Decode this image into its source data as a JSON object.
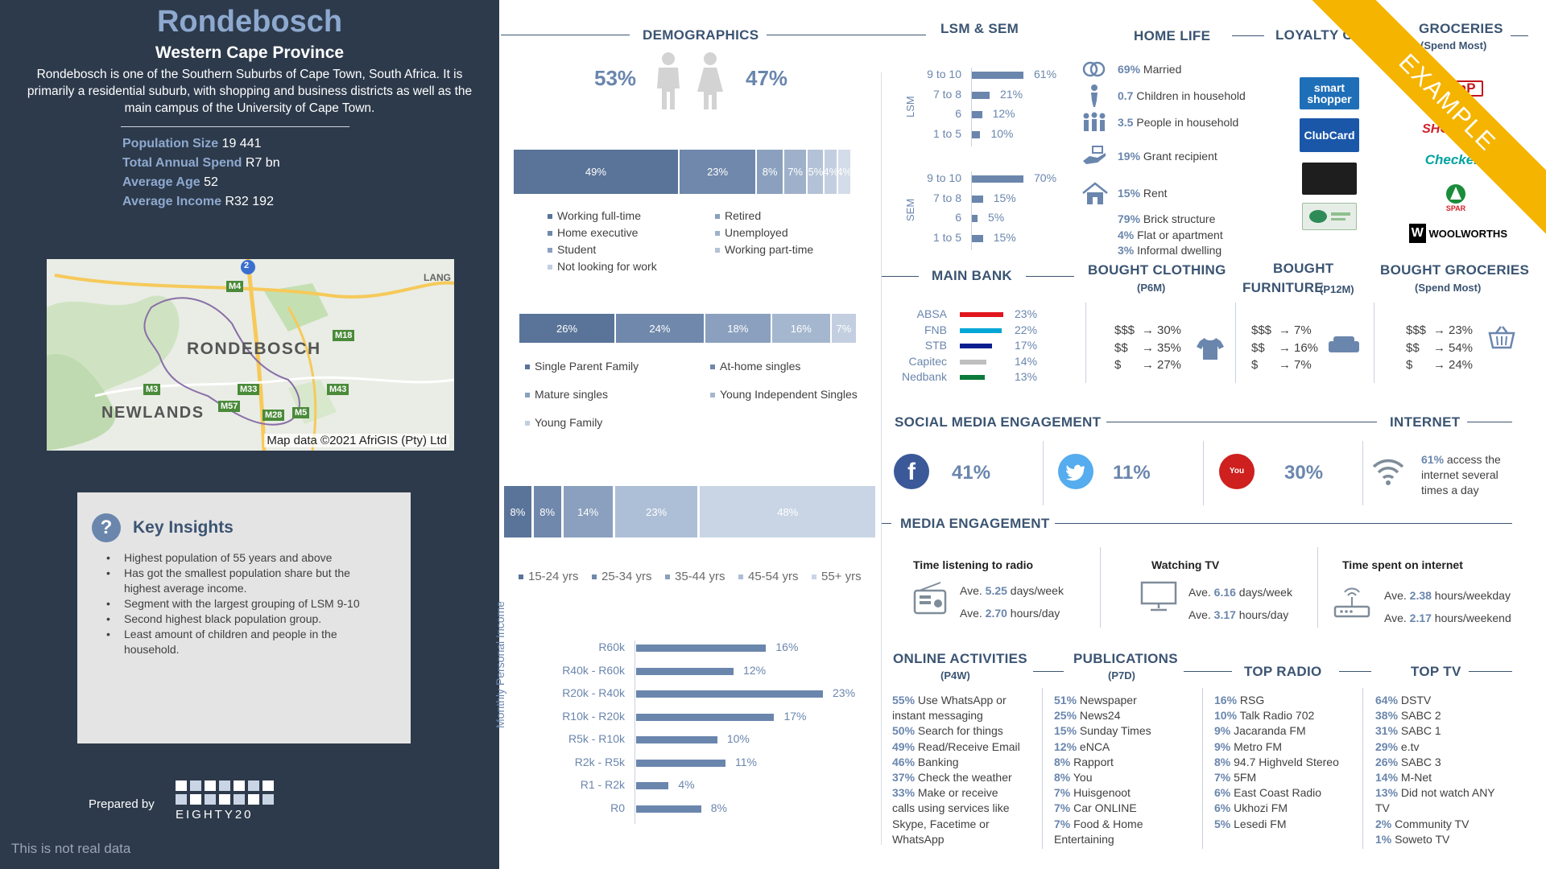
{
  "sidebar": {
    "title": "Rondebosch",
    "province": "Western Cape Province",
    "description": "Rondebosch is one of the Southern Suburbs of Cape Town, South Africa. It is primarily a residential suburb, with shopping and business districts as well as the main campus of the University of Cape Town.",
    "stats": [
      {
        "label": "Population Size",
        "value": "19 441"
      },
      {
        "label": "Total Annual Spend",
        "value": "R7 bn"
      },
      {
        "label": "Average Age",
        "value": "52"
      },
      {
        "label": "Average Income",
        "value": "R32 192"
      }
    ],
    "map": {
      "labels": [
        "RONDEBOSCH",
        "NEWLANDS",
        "LANG"
      ],
      "routes": [
        "2",
        "M4",
        "M18",
        "M3",
        "M33",
        "M43",
        "M57",
        "M28",
        "M5"
      ],
      "credit": "Map data ©2021 AfriGIS (Pty) Ltd"
    },
    "insights": {
      "title": "Key Insights",
      "items": [
        "Highest population of 55 years and above",
        "Has got the smallest population share but the highest average income.",
        "Segment with the largest grouping of LSM 9-10",
        "Second highest black population group.",
        "Least amount of children and people in the household."
      ]
    },
    "prepared_by": "Prepared by",
    "brand": "EIGHTY20",
    "disclaimer": "This is not real data"
  },
  "demographics": {
    "title": "DEMOGRAPHICS",
    "male_pct": "53%",
    "female_pct": "47%",
    "employment": {
      "segments": [
        {
          "label": "49%",
          "value": 49,
          "color": "#5a7499"
        },
        {
          "label": "23%",
          "value": 23,
          "color": "#6f88ab"
        },
        {
          "label": "8%",
          "value": 8,
          "color": "#8aa0be"
        },
        {
          "label": "7%",
          "value": 7,
          "color": "#9fb1ca"
        },
        {
          "label": "5%",
          "value": 5,
          "color": "#b3c2d6"
        },
        {
          "label": "4%",
          "value": 4,
          "color": "#c3cfe0"
        },
        {
          "label": "4%",
          "value": 4,
          "color": "#d3dce8"
        }
      ],
      "legend": [
        "Working full-time",
        "Retired",
        "Home executive",
        "Unemployed",
        "Student",
        "Working part-time",
        "Not looking for work"
      ]
    },
    "household": {
      "segments": [
        {
          "label": "26%",
          "value": 26,
          "color": "#5a7499"
        },
        {
          "label": "24%",
          "value": 24,
          "color": "#6f88ab"
        },
        {
          "label": "18%",
          "value": 18,
          "color": "#8aa0be"
        },
        {
          "label": "16%",
          "value": 16,
          "color": "#a5b7cf"
        },
        {
          "label": "7%",
          "value": 7,
          "color": "#c3cfe0"
        }
      ],
      "legend": [
        "Single Parent Family",
        "At-home singles",
        "Mature singles",
        "Young Independent Singles",
        "Young Family"
      ]
    },
    "age": {
      "segments": [
        {
          "label": "8%",
          "value": 8,
          "color": "#5a7499"
        },
        {
          "label": "8%",
          "value": 8,
          "color": "#6f88ab"
        },
        {
          "label": "14%",
          "value": 14,
          "color": "#8aa0be"
        },
        {
          "label": "23%",
          "value": 23,
          "color": "#adbfd6"
        },
        {
          "label": "48%",
          "value": 48,
          "color": "#c9d5e5"
        }
      ],
      "legend": [
        "15-24 yrs",
        "25-34 yrs",
        "35-44 yrs",
        "45-54 yrs",
        "55+ yrs"
      ]
    },
    "income": {
      "axis_label": "Monthly Personal Income",
      "rows": [
        {
          "label": "R60k",
          "value": 16,
          "text": "16%"
        },
        {
          "label": "R40k - R60k",
          "value": 12,
          "text": "12%"
        },
        {
          "label": "R20k - R40k",
          "value": 23,
          "text": "23%"
        },
        {
          "label": "R10k - R20k",
          "value": 17,
          "text": "17%"
        },
        {
          "label": "R5k - R10k",
          "value": 10,
          "text": "10%"
        },
        {
          "label": "R2k - R5k",
          "value": 11,
          "text": "11%"
        },
        {
          "label": "R1 - R2k",
          "value": 4,
          "text": "4%"
        },
        {
          "label": "R0",
          "value": 8,
          "text": "8%"
        }
      ]
    }
  },
  "lsm_sem": {
    "title": "LSM & SEM",
    "lsm_label": "LSM",
    "sem_label": "SEM",
    "lsm": [
      {
        "label": "9 to 10",
        "value": 61,
        "text": "61%"
      },
      {
        "label": "7 to 8",
        "value": 21,
        "text": "21%"
      },
      {
        "label": "6",
        "value": 12,
        "text": "12%"
      },
      {
        "label": "1 to 5",
        "value": 10,
        "text": "10%"
      }
    ],
    "sem": [
      {
        "label": "9 to 10",
        "value": 70,
        "text": "70%"
      },
      {
        "label": "7 to 8",
        "value": 15,
        "text": "15%"
      },
      {
        "label": "6",
        "value": 5,
        "text": "5%"
      },
      {
        "label": "1 to 5",
        "value": 15,
        "text": "15%"
      }
    ]
  },
  "home_life": {
    "title": "HOME LIFE",
    "items": [
      {
        "num": "69%",
        "text": "Married"
      },
      {
        "num": "0.7",
        "text": "Children in household"
      },
      {
        "num": "3.5",
        "text": "People in household"
      },
      {
        "num": "19%",
        "text": "Grant recipient"
      },
      {
        "num": "15%",
        "text": "Rent"
      }
    ],
    "dwelling": [
      {
        "num": "79%",
        "text": "Brick structure"
      },
      {
        "num": "4%",
        "text": "Flat or apartment"
      },
      {
        "num": "3%",
        "text": "Informal dwelling"
      }
    ]
  },
  "loyalty": {
    "title": "LOYALTY CARDS",
    "cards": [
      "smart shopper",
      "ClubCard",
      "",
      ""
    ]
  },
  "groceries_top": {
    "title": "GROCERIES",
    "subtitle": "(Spend Most)",
    "stores": [
      "PnP",
      "SHOPRITE",
      "Checkers",
      "SPAR",
      "WOOLWORTHS"
    ]
  },
  "watermark": "EXAMPLE",
  "main_bank": {
    "title": "MAIN BANK",
    "banks": [
      {
        "name": "ABSA",
        "value": 23,
        "text": "23%",
        "color": "#e0161e"
      },
      {
        "name": "FNB",
        "value": 22,
        "text": "22%",
        "color": "#00a6d6"
      },
      {
        "name": "STB",
        "value": 17,
        "text": "17%",
        "color": "#0a1f8f"
      },
      {
        "name": "Capitec",
        "value": 14,
        "text": "14%",
        "color": "#bfbfbf"
      },
      {
        "name": "Nedbank",
        "value": 13,
        "text": "13%",
        "color": "#0b7a3b"
      }
    ]
  },
  "bought_clothing": {
    "title": "BOUGHT CLOTHING",
    "subtitle": "(P6M)",
    "rows": [
      {
        "k": "$$$",
        "v": "30%"
      },
      {
        "k": "$$",
        "v": "35%"
      },
      {
        "k": "$",
        "v": "27%"
      }
    ]
  },
  "bought_furniture": {
    "title": "BOUGHT",
    "title2": "FURNITURE",
    "subtitle": "(P12M)",
    "rows": [
      {
        "k": "$$$",
        "v": "7%"
      },
      {
        "k": "$$",
        "v": "16%"
      },
      {
        "k": "$",
        "v": "7%"
      }
    ]
  },
  "bought_groceries": {
    "title": "BOUGHT GROCERIES",
    "subtitle": "(Spend Most)",
    "rows": [
      {
        "k": "$$$",
        "v": "23%"
      },
      {
        "k": "$$",
        "v": "54%"
      },
      {
        "k": "$",
        "v": "24%"
      }
    ]
  },
  "social": {
    "title": "SOCIAL MEDIA ENGAGEMENT",
    "facebook": "41%",
    "twitter": "11%",
    "youtube": "30%"
  },
  "internet": {
    "title": "INTERNET",
    "pct": "61%",
    "text": "access the internet several times a day"
  },
  "media": {
    "title": "MEDIA ENGAGEMENT",
    "radio": {
      "title": "Time listening to radio",
      "a_pre": "Ave.",
      "a_num": "5.25",
      "a_unit": "days/week",
      "b_pre": "Ave.",
      "b_num": "2.70",
      "b_unit": "hours/day"
    },
    "tv": {
      "title": "Watching TV",
      "a_pre": "Ave.",
      "a_num": "6.16",
      "a_unit": "days/week",
      "b_pre": "Ave.",
      "b_num": "3.17",
      "b_unit": "hours/day"
    },
    "web": {
      "title": "Time spent on internet",
      "a_pre": "Ave.",
      "a_num": "2.38",
      "a_unit": "hours/weekday",
      "b_pre": "Ave.",
      "b_num": "2.17",
      "b_unit": "hours/weekend"
    }
  },
  "online": {
    "title": "ONLINE ACTIVITIES",
    "subtitle": "(P4W)",
    "items": [
      {
        "num": "55%",
        "text": "Use WhatsApp or",
        "cont": "instant messaging"
      },
      {
        "num": "50%",
        "text": "Search for things"
      },
      {
        "num": "49%",
        "text": "Read/Receive Email"
      },
      {
        "num": "46%",
        "text": "Banking"
      },
      {
        "num": "37%",
        "text": "Check the weather"
      },
      {
        "num": "33%",
        "text": "Make or receive",
        "cont": "calls using services like",
        "cont2": "Skype, Facetime or",
        "cont3": "WhatsApp"
      }
    ]
  },
  "publications": {
    "title": "PUBLICATIONS",
    "subtitle": "(P7D)",
    "items": [
      {
        "num": "51%",
        "text": "Newspaper"
      },
      {
        "num": "25%",
        "text": "News24"
      },
      {
        "num": "15%",
        "text": "Sunday Times"
      },
      {
        "num": "12%",
        "text": "eNCA"
      },
      {
        "num": "8%",
        "text": "Rapport"
      },
      {
        "num": "8%",
        "text": "You"
      },
      {
        "num": "7%",
        "text": "Huisgenoot"
      },
      {
        "num": "7%",
        "text": "Car ONLINE"
      },
      {
        "num": "7%",
        "text": "Food & Home",
        "cont": "Entertaining"
      }
    ]
  },
  "top_radio": {
    "title": "TOP RADIO",
    "items": [
      {
        "num": "16%",
        "text": "RSG"
      },
      {
        "num": "10%",
        "text": "Talk Radio 702"
      },
      {
        "num": "9%",
        "text": "Jacaranda FM"
      },
      {
        "num": "9%",
        "text": "Metro FM"
      },
      {
        "num": "8%",
        "text": "94.7 Highveld Stereo"
      },
      {
        "num": "7%",
        "text": "5FM"
      },
      {
        "num": "6%",
        "text": "East Coast Radio"
      },
      {
        "num": "6%",
        "text": "Ukhozi FM"
      },
      {
        "num": "5%",
        "text": "Lesedi FM"
      }
    ]
  },
  "top_tv": {
    "title": "TOP TV",
    "items": [
      {
        "num": "64%",
        "text": "DSTV"
      },
      {
        "num": "38%",
        "text": "SABC 2"
      },
      {
        "num": "31%",
        "text": "SABC 1"
      },
      {
        "num": "29%",
        "text": "e.tv"
      },
      {
        "num": "26%",
        "text": "SABC 3"
      },
      {
        "num": "14%",
        "text": "M-Net"
      },
      {
        "num": "13%",
        "text": "Did not watch ANY",
        "cont": "TV"
      },
      {
        "num": "2%",
        "text": "Community TV"
      },
      {
        "num": "1%",
        "text": "Soweto TV"
      }
    ]
  }
}
